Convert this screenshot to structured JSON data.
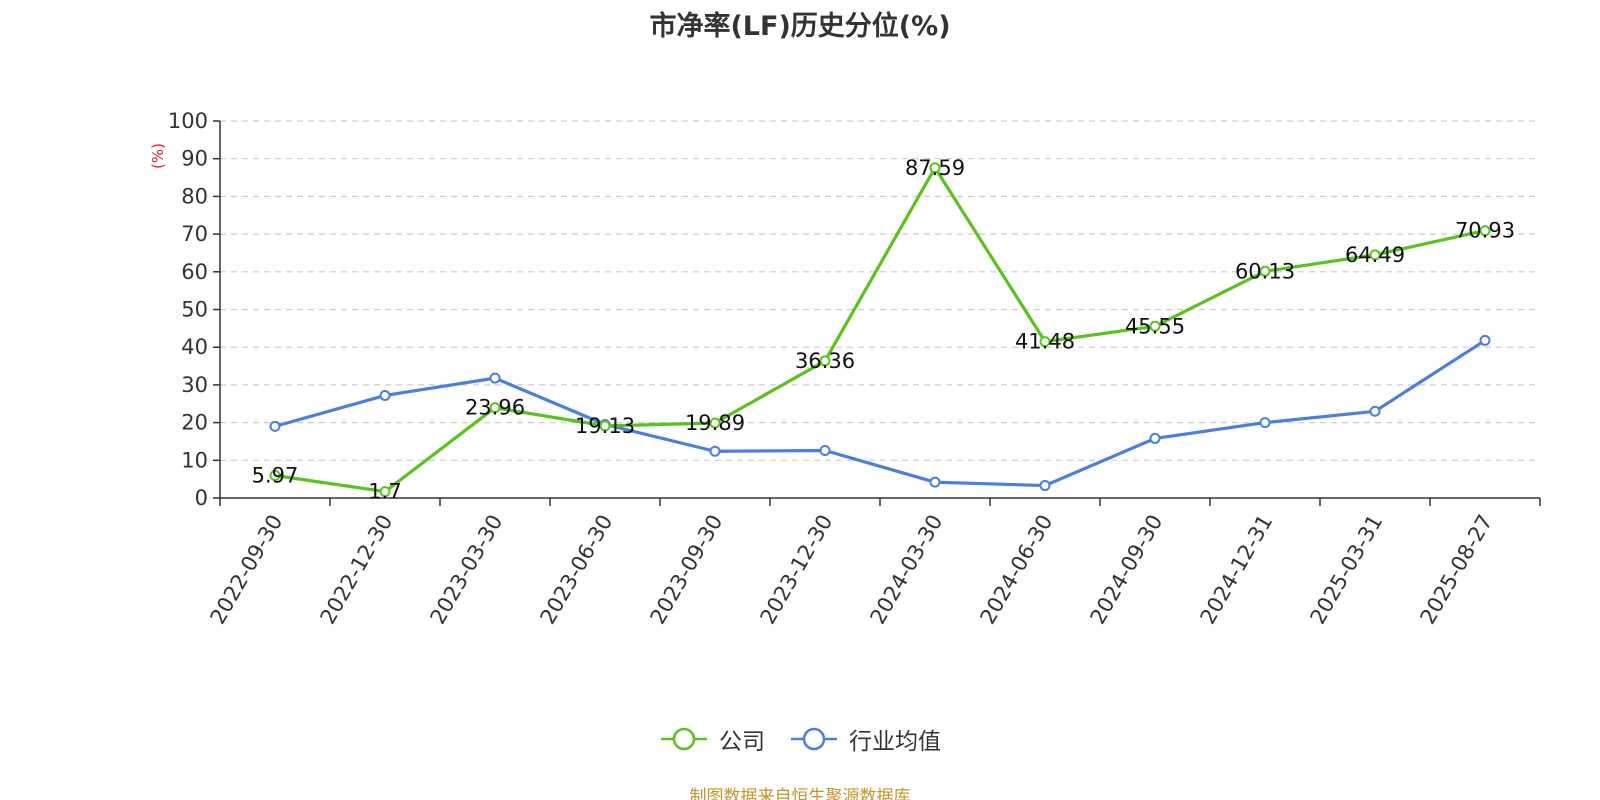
{
  "chart_data": {
    "type": "line",
    "title": "市净率(LF)历史分位(%)",
    "ylabel": "(%)",
    "xlabel": "",
    "categories": [
      "2022-09-30",
      "2022-12-30",
      "2023-03-30",
      "2023-06-30",
      "2023-09-30",
      "2023-12-30",
      "2024-03-30",
      "2024-06-30",
      "2024-09-30",
      "2024-12-31",
      "2025-03-31",
      "2025-08-27"
    ],
    "ylim": [
      0,
      100
    ],
    "yticks": [
      0,
      10,
      20,
      30,
      40,
      50,
      60,
      70,
      80,
      90,
      100
    ],
    "grid": true,
    "legend_position": "bottom",
    "series": [
      {
        "name": "公司",
        "color": "#5ac21f",
        "values": [
          5.97,
          1.7,
          23.96,
          19.13,
          19.89,
          36.36,
          87.59,
          41.48,
          45.55,
          60.13,
          64.49,
          70.93
        ],
        "labels": [
          "5.97",
          "1.7",
          "23.96",
          "19.13",
          "19.89",
          "36.36",
          "87.59",
          "41.48",
          "45.55",
          "60.13",
          "64.49",
          "70.93"
        ]
      },
      {
        "name": "行业均值",
        "color": "#4a7fdc",
        "values": [
          19.0,
          27.2,
          31.8,
          19.5,
          12.4,
          12.6,
          4.2,
          3.3,
          15.8,
          20.0,
          23.0,
          41.8
        ]
      }
    ]
  },
  "ylabel_color": "#e02020",
  "footer": {
    "source": "制图数据来自恒生聚源数据库",
    "color": "#c8922a"
  }
}
